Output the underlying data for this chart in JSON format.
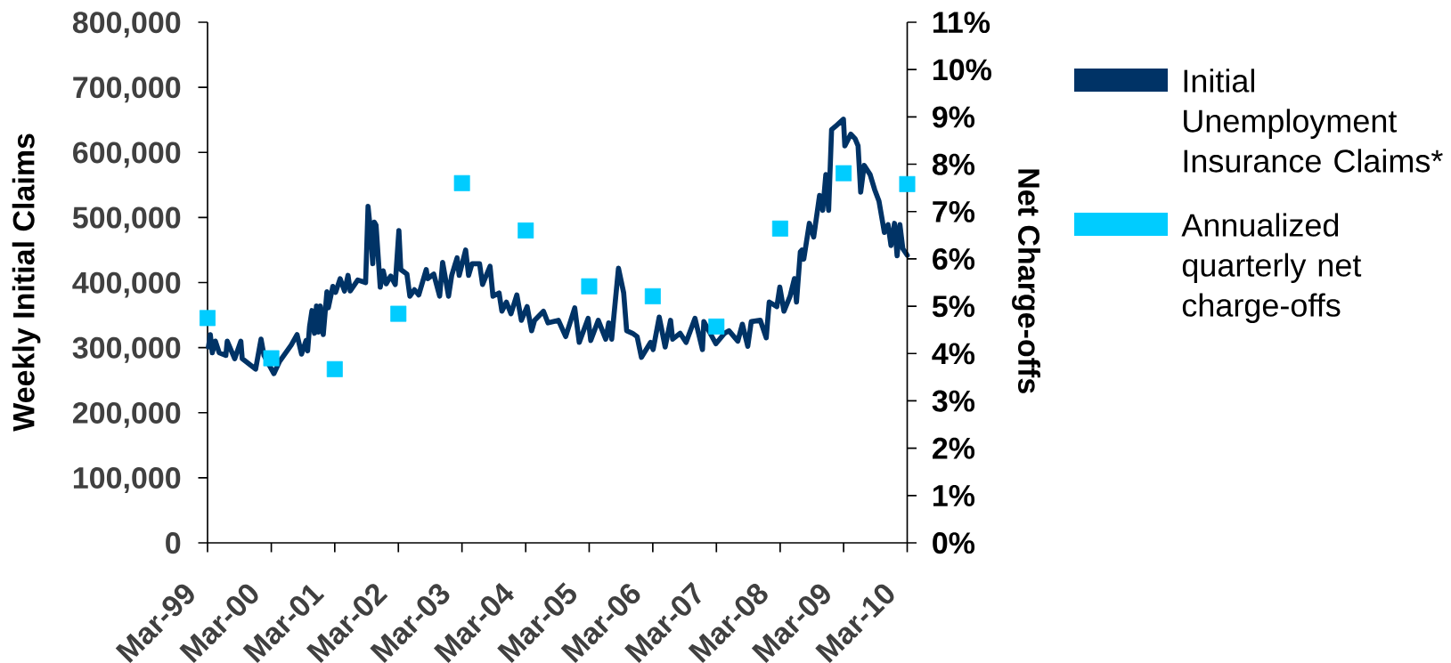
{
  "chart_data": {
    "type": "line",
    "ylabel": "Weekly Initial Claims",
    "y2label": "Net Charge-offs",
    "xlim": [
      "1999-03",
      "2010-03"
    ],
    "xticks": [
      {
        "value": "1999-03",
        "label": "Mar-99"
      },
      {
        "value": "2000-03",
        "label": "Mar-00"
      },
      {
        "value": "2001-03",
        "label": "Mar-01"
      },
      {
        "value": "2002-03",
        "label": "Mar-02"
      },
      {
        "value": "2003-03",
        "label": "Mar-03"
      },
      {
        "value": "2004-03",
        "label": "Mar-04"
      },
      {
        "value": "2005-03",
        "label": "Mar-05"
      },
      {
        "value": "2006-03",
        "label": "Mar-06"
      },
      {
        "value": "2007-03",
        "label": "Mar-07"
      },
      {
        "value": "2008-03",
        "label": "Mar-08"
      },
      {
        "value": "2009-03",
        "label": "Mar-09"
      },
      {
        "value": "2010-03",
        "label": "Mar-10"
      }
    ],
    "ylim": [
      0,
      800000
    ],
    "yticks": [
      0,
      {
        "value": 100000,
        "label": "100,000"
      },
      {
        "value": 200000,
        "label": "200,000"
      },
      {
        "value": 300000,
        "label": "300,000"
      },
      {
        "value": 400000,
        "label": "400,000"
      },
      {
        "value": 500000,
        "label": "500,000"
      },
      {
        "value": 600000,
        "label": "600,000"
      },
      {
        "value": 700000,
        "label": "700,000"
      },
      {
        "value": 800000,
        "label": "800,000"
      }
    ],
    "y2lim": [
      0,
      11
    ],
    "y2ticks": [
      {
        "value": 0,
        "label": "0%"
      },
      {
        "value": 1,
        "label": "1%"
      },
      {
        "value": 2,
        "label": "2%"
      },
      {
        "value": 3,
        "label": "3%"
      },
      {
        "value": 4,
        "label": "4%"
      },
      {
        "value": 5,
        "label": "5%"
      },
      {
        "value": 6,
        "label": "6%"
      },
      {
        "value": 7,
        "label": "7%"
      },
      {
        "value": 8,
        "label": "8%"
      },
      {
        "value": 9,
        "label": "9%"
      },
      {
        "value": 10,
        "label": "10%"
      },
      {
        "value": 11,
        "label": "11%"
      }
    ],
    "legend": "right",
    "series": [
      {
        "name": "Initial Unemployment Insurance Claims*",
        "color": "#003366",
        "x": [
          "1999-03-06",
          "1999-03-17",
          "1999-03-28",
          "1999-04-15",
          "1999-05-07",
          "1999-06-14",
          "1999-06-22",
          "1999-08-04",
          "1999-09-08",
          "1999-09-16",
          "1999-12-02",
          "2000-01-02",
          "2000-01-19",
          "2000-03-16",
          "2000-04-16",
          "2000-06-24",
          "2000-07-27",
          "2000-08-22",
          "2000-09-17",
          "2000-09-26",
          "2000-10-07",
          "2000-10-21",
          "2000-11-04",
          "2000-11-16",
          "2000-11-28",
          "2000-12-08",
          "2000-12-25",
          "2001-01-15",
          "2001-01-23",
          "2001-02-18",
          "2001-03-06",
          "2001-04-01",
          "2001-04-26",
          "2001-05-16",
          "2001-05-29",
          "2001-07-11",
          "2001-08-25",
          "2001-09-08",
          "2001-09-22",
          "2001-10-05",
          "2001-10-14",
          "2001-10-24",
          "2001-11-17",
          "2001-12-04",
          "2001-12-21",
          "2002-01-16",
          "2002-02-11",
          "2002-03-04",
          "2002-03-15",
          "2002-04-19",
          "2002-05-06",
          "2002-06-01",
          "2002-06-26",
          "2002-08-08",
          "2002-08-16",
          "2002-09-20",
          "2002-10-24",
          "2002-11-10",
          "2002-12-14",
          "2003-01-01",
          "2003-02-01",
          "2003-02-13",
          "2003-03-22",
          "2003-04-08",
          "2003-04-28",
          "2003-06-10",
          "2003-06-27",
          "2003-08-09",
          "2003-08-26",
          "2003-09-30",
          "2003-10-16",
          "2003-11-11",
          "2003-12-07",
          "2004-01-10",
          "2004-02-05",
          "2004-03-09",
          "2004-04-04",
          "2004-04-21",
          "2004-06-11",
          "2004-07-07",
          "2004-09-05",
          "2004-10-17",
          "2004-12-08",
          "2005-01-03",
          "2005-02-23",
          "2005-03-10",
          "2005-04-22",
          "2005-06-04",
          "2005-06-21",
          "2005-07-08",
          "2005-08-16",
          "2005-09-15",
          "2005-10-02",
          "2005-11-05",
          "2005-12-01",
          "2005-12-26",
          "2006-02-16",
          "2006-03-03",
          "2006-04-07",
          "2006-05-11",
          "2006-06-11",
          "2006-06-23",
          "2006-08-05",
          "2006-09-08",
          "2006-10-29",
          "2006-12-11",
          "2006-12-19",
          "2007-02-26",
          "2007-04-17",
          "2007-05-12",
          "2007-07-02",
          "2007-07-28",
          "2007-08-28",
          "2007-09-17",
          "2007-11-08",
          "2007-12-12",
          "2007-12-29",
          "2008-02-11",
          "2008-02-28",
          "2008-03-23",
          "2008-04-27",
          "2008-05-22",
          "2008-06-03",
          "2008-06-25",
          "2008-07-04",
          "2008-07-15",
          "2008-08-16",
          "2008-09-10",
          "2008-10-14",
          "2008-11-01",
          "2008-11-19",
          "2008-12-05",
          "2008-12-22",
          "2009-01-17",
          "2009-02-28",
          "2009-03-08",
          "2009-04-11",
          "2009-05-06",
          "2009-05-23",
          "2009-06-07",
          "2009-06-27",
          "2009-07-31",
          "2009-08-26",
          "2009-09-20",
          "2009-10-21",
          "2009-11-11",
          "2009-11-28",
          "2009-12-18",
          "2010-01-02",
          "2010-01-18",
          "2010-02-04",
          "2010-03-01"
        ],
        "values": [
          301000,
          320000,
          292000,
          310000,
          292000,
          288000,
          310000,
          283000,
          310000,
          283000,
          267000,
          313000,
          288000,
          260000,
          278000,
          304000,
          320000,
          290000,
          311000,
          295000,
          332000,
          357000,
          322000,
          364000,
          324000,
          364000,
          320000,
          386000,
          361000,
          394000,
          385000,
          406000,
          387000,
          411000,
          387000,
          404000,
          400000,
          517000,
          480000,
          429000,
          493000,
          488000,
          393000,
          418000,
          398000,
          410000,
          397000,
          480000,
          420000,
          413000,
          379000,
          389000,
          381000,
          420000,
          406000,
          413000,
          379000,
          431000,
          379000,
          411000,
          438000,
          411000,
          450000,
          411000,
          429000,
          429000,
          397000,
          425000,
          379000,
          384000,
          356000,
          370000,
          352000,
          381000,
          342000,
          363000,
          326000,
          342000,
          356000,
          338000,
          342000,
          317000,
          361000,
          308000,
          345000,
          311000,
          342000,
          313000,
          338000,
          313000,
          422000,
          384000,
          326000,
          322000,
          317000,
          285000,
          308000,
          297000,
          347000,
          301000,
          342000,
          313000,
          322000,
          308000,
          345000,
          297000,
          340000,
          306000,
          322000,
          326000,
          310000,
          336000,
          302000,
          340000,
          342000,
          315000,
          370000,
          363000,
          393000,
          356000,
          379000,
          406000,
          370000,
          447000,
          450000,
          436000,
          491000,
          470000,
          534000,
          511000,
          566000,
          511000,
          635000,
          641000,
          651000,
          610000,
          628000,
          621000,
          610000,
          539000,
          580000,
          566000,
          543000,
          525000,
          477000,
          489000,
          457000,
          491000,
          441000,
          489000,
          452000,
          442000
        ]
      },
      {
        "name": "Annualized quarterly net charge-offs",
        "type": "scatter",
        "color": "#00ccff",
        "marker": "square",
        "axis": "y2",
        "x": [
          "1999-03",
          "2000-03",
          "2001-03",
          "2002-03",
          "2003-03",
          "2004-03",
          "2005-03",
          "2006-03",
          "2007-03",
          "2008-03",
          "2009-03",
          "2010-03"
        ],
        "values": [
          4.75,
          3.9,
          3.67,
          4.84,
          7.6,
          6.6,
          5.42,
          5.21,
          4.57,
          6.64,
          7.81,
          7.58
        ]
      }
    ]
  }
}
